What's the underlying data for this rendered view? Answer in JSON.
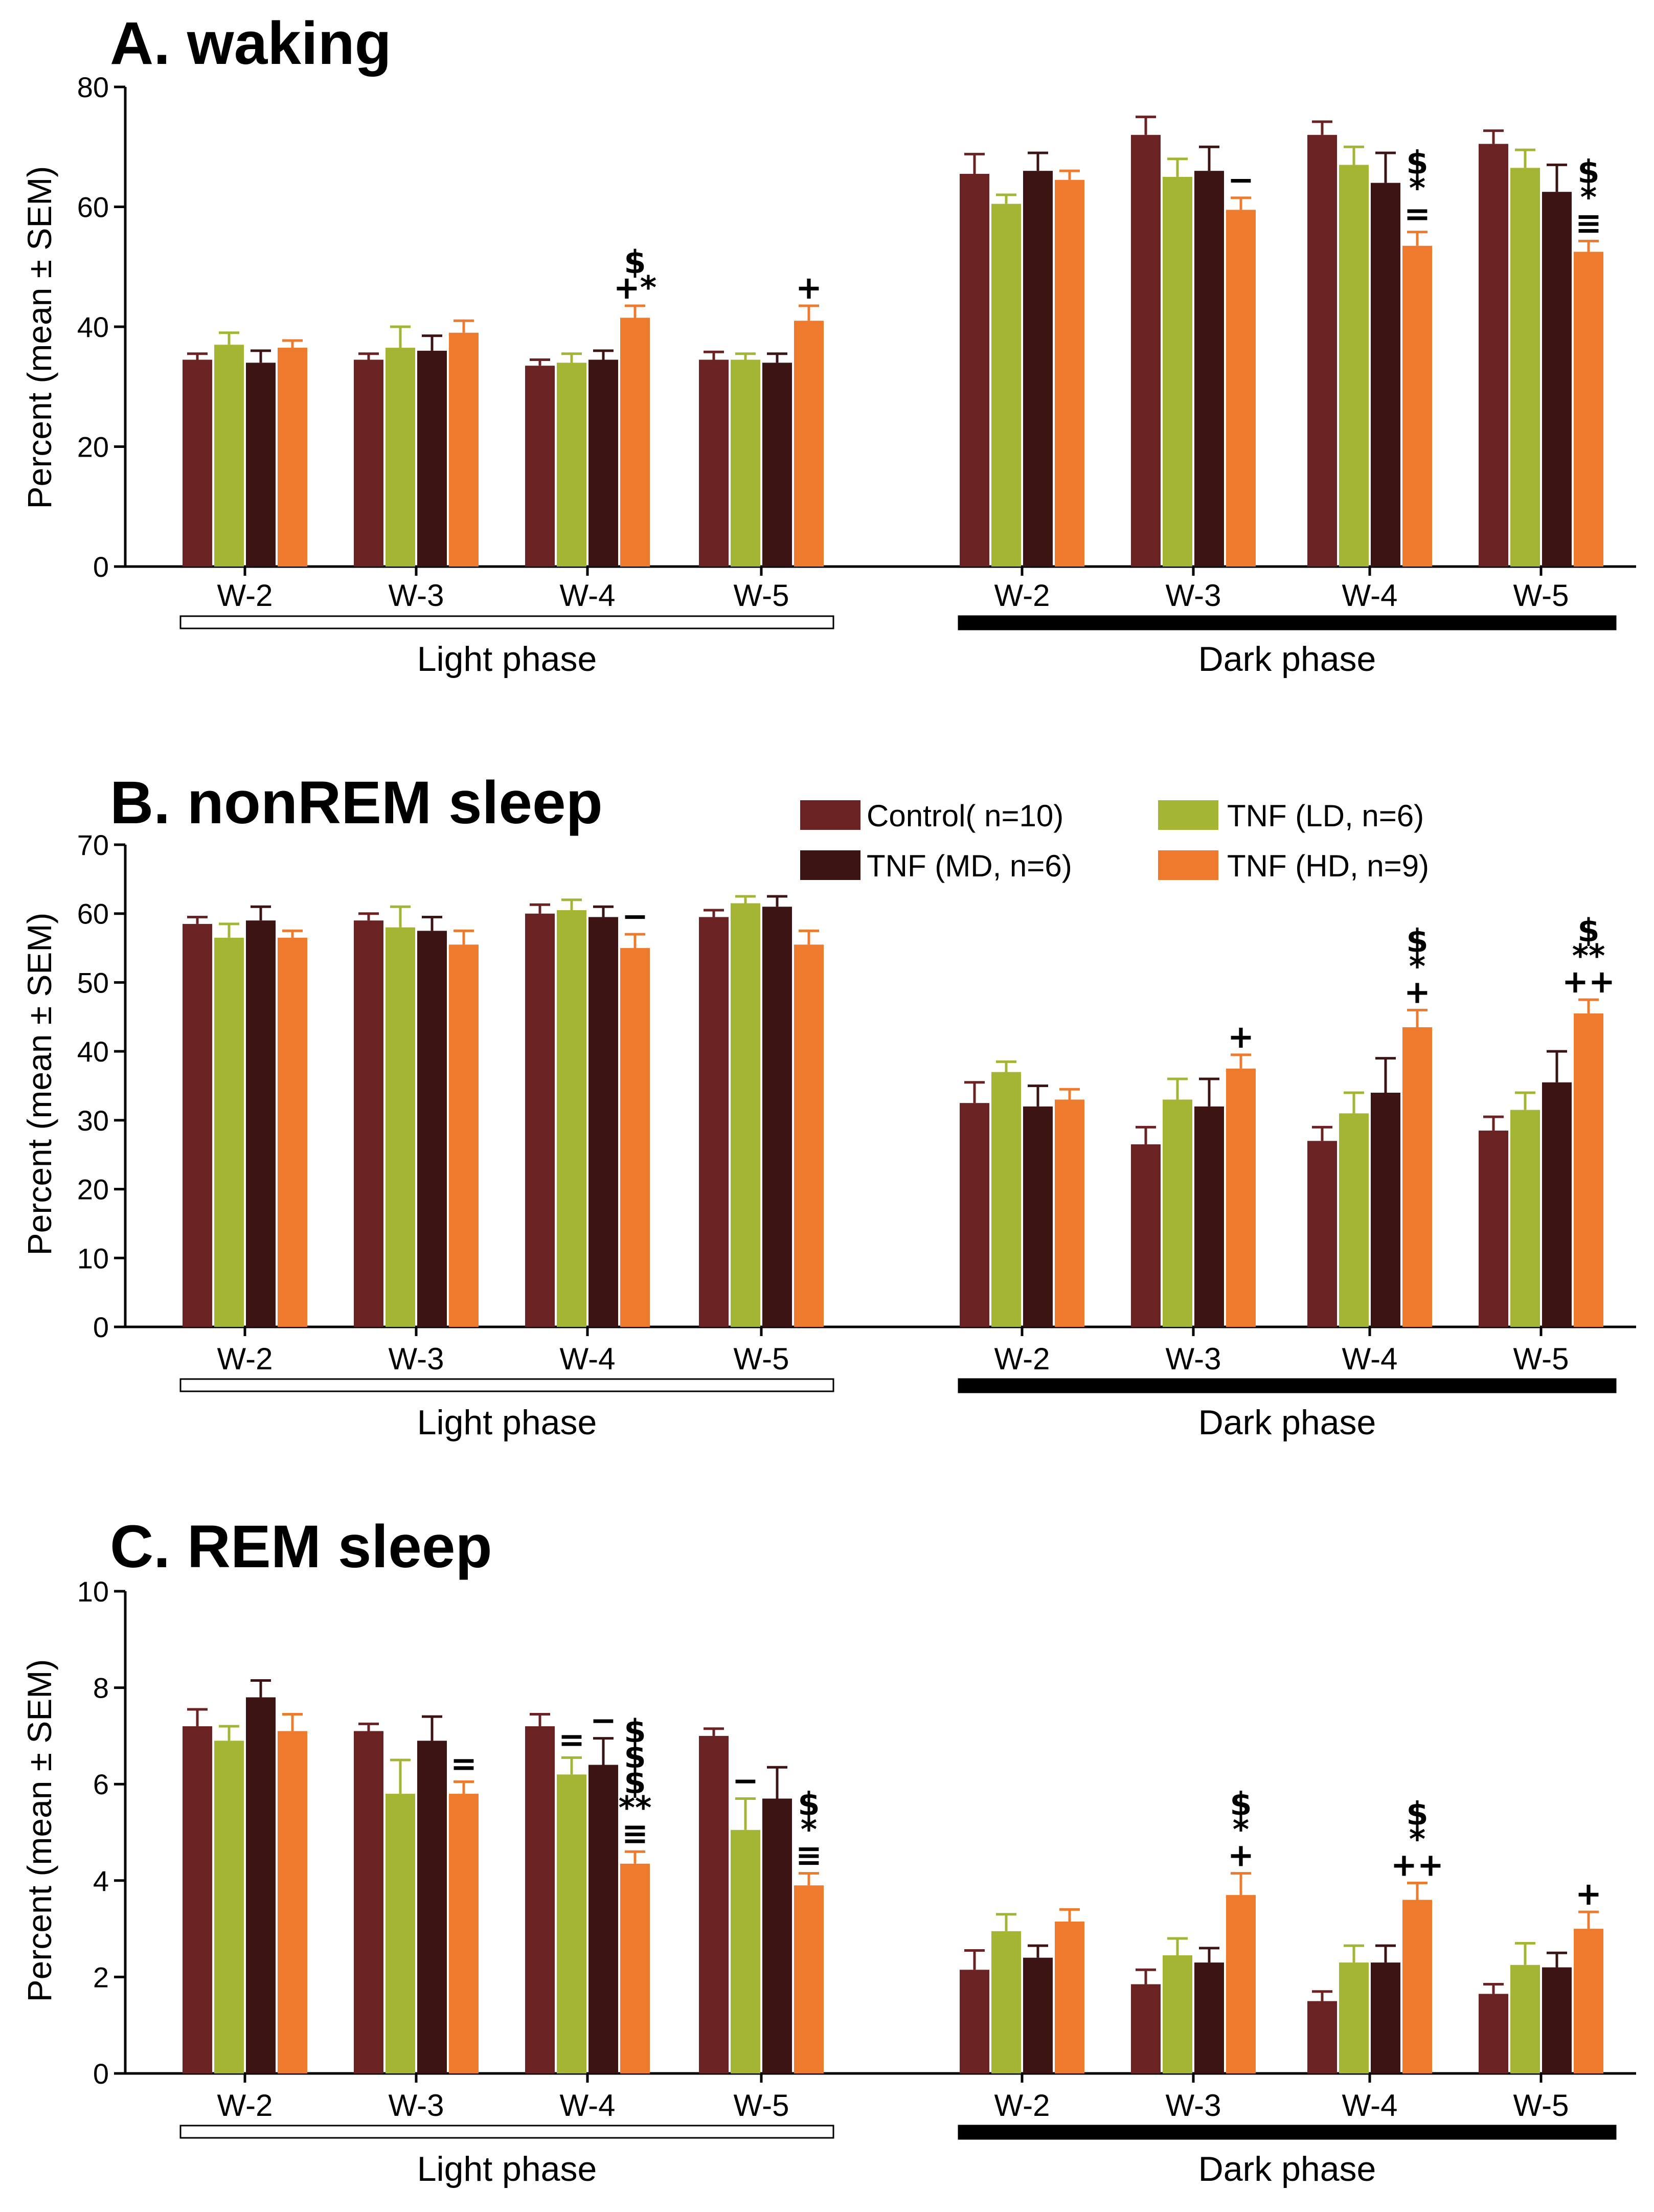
{
  "colors": {
    "control": "#6a2222",
    "ld": "#a4b534",
    "md": "#3d1414",
    "hd": "#ee7a2d",
    "axis": "#000000"
  },
  "legend": [
    {
      "name": "Control( n=10)",
      "color_key": "control"
    },
    {
      "name": "TNF (LD, n=6)",
      "color_key": "ld"
    },
    {
      "name": "TNF (MD, n=6)",
      "color_key": "md"
    },
    {
      "name": "TNF (HD, n=9)",
      "color_key": "hd"
    }
  ],
  "chart_data": [
    {
      "type": "bar",
      "title": "A. waking",
      "ylabel": "Percent  (mean ± SEM)",
      "ylim": [
        0,
        80
      ],
      "yticks": [
        0,
        20,
        40,
        60,
        80
      ],
      "ytick_labels": [
        "0",
        "20",
        "40",
        "60",
        "80"
      ],
      "categories": [
        "W-2",
        "W-3",
        "W-4",
        "W-5",
        "W-2",
        "W-3",
        "W-4",
        "W-5"
      ],
      "phases": [
        {
          "label": "Light phase",
          "fill": "white"
        },
        {
          "label": "Dark phase",
          "fill": "black"
        }
      ],
      "series": [
        {
          "name": "Control( n=10)",
          "values": [
            34.5,
            34.5,
            33.5,
            34.5,
            65.5,
            72,
            72,
            70.5
          ],
          "errors": [
            1,
            1,
            1,
            1.3,
            3.3,
            3,
            2.2,
            2.2
          ]
        },
        {
          "name": "TNF (LD, n=6)",
          "values": [
            37,
            36.5,
            34,
            34.5,
            60.5,
            65,
            67,
            66.5
          ],
          "errors": [
            2,
            3.5,
            1.5,
            1,
            1.5,
            3,
            3,
            3
          ]
        },
        {
          "name": "TNF (MD, n=6)",
          "values": [
            34,
            36,
            34.5,
            34,
            66,
            66,
            64,
            62.5
          ],
          "errors": [
            2,
            2.5,
            1.5,
            1.5,
            3,
            4,
            5,
            4.5
          ]
        },
        {
          "name": "TNF (HD, n=9)",
          "values": [
            36.5,
            39,
            41.5,
            41,
            64.5,
            59.5,
            53.5,
            52.5
          ],
          "errors": [
            1.2,
            2,
            2,
            2.5,
            1.5,
            2,
            2.3,
            1.8
          ]
        }
      ],
      "annotations": [
        {
          "category": 2,
          "series": 3,
          "lines": [
            "$",
            "+*"
          ]
        },
        {
          "category": 3,
          "series": 3,
          "lines": [
            "+"
          ]
        },
        {
          "category": 5,
          "series": 3,
          "lines": [
            "−"
          ]
        },
        {
          "category": 6,
          "series": 3,
          "lines": [
            "$",
            "*",
            "="
          ]
        },
        {
          "category": 7,
          "series": 3,
          "lines": [
            "$",
            "*",
            "≡"
          ]
        }
      ]
    },
    {
      "type": "bar",
      "title": "B. nonREM sleep",
      "ylabel": "Percent  (mean ± SEM)",
      "ylim": [
        0,
        70
      ],
      "yticks": [
        0,
        10,
        20,
        30,
        40,
        50,
        60,
        70
      ],
      "ytick_labels": [
        "0",
        "10",
        "20",
        "30",
        "40",
        "50",
        "60",
        "70"
      ],
      "categories": [
        "W-2",
        "W-3",
        "W-4",
        "W-5",
        "W-2",
        "W-3",
        "W-4",
        "W-5"
      ],
      "phases": [
        {
          "label": "Light phase",
          "fill": "white"
        },
        {
          "label": "Dark phase",
          "fill": "black"
        }
      ],
      "series": [
        {
          "name": "Control( n=10)",
          "values": [
            58.5,
            59,
            60,
            59.5,
            32.5,
            26.5,
            27,
            28.5
          ],
          "errors": [
            1,
            1,
            1.3,
            1,
            3,
            2.5,
            2,
            2
          ]
        },
        {
          "name": "TNF (LD, n=6)",
          "values": [
            56.5,
            58,
            60.5,
            61.5,
            37,
            33,
            31,
            31.5
          ],
          "errors": [
            2,
            3,
            1.5,
            1,
            1.5,
            3,
            3,
            2.5
          ]
        },
        {
          "name": "TNF (MD, n=6)",
          "values": [
            59,
            57.5,
            59.5,
            61,
            32,
            32,
            34,
            35.5
          ],
          "errors": [
            2,
            2,
            1.5,
            1.5,
            3,
            4,
            5,
            4.5
          ]
        },
        {
          "name": "TNF (HD, n=9)",
          "values": [
            56.5,
            55.5,
            55,
            55.5,
            33,
            37.5,
            43.5,
            45.5
          ],
          "errors": [
            1,
            2,
            2,
            2,
            1.5,
            2,
            2.5,
            2
          ]
        }
      ],
      "annotations": [
        {
          "category": 2,
          "series": 3,
          "lines": [
            "−"
          ]
        },
        {
          "category": 5,
          "series": 3,
          "lines": [
            "+"
          ]
        },
        {
          "category": 6,
          "series": 3,
          "lines": [
            "$",
            "*",
            "+"
          ]
        },
        {
          "category": 7,
          "series": 3,
          "lines": [
            "$",
            "**",
            "++"
          ]
        }
      ]
    },
    {
      "type": "bar",
      "title": "C. REM sleep",
      "ylabel": "Percent  (mean ± SEM)",
      "ylim": [
        0,
        10
      ],
      "yticks": [
        0,
        2,
        4,
        6,
        8,
        10
      ],
      "ytick_labels": [
        "0",
        "2",
        "4",
        "6",
        "8",
        "10"
      ],
      "categories": [
        "W-2",
        "W-3",
        "W-4",
        "W-5",
        "W-2",
        "W-3",
        "W-4",
        "W-5"
      ],
      "phases": [
        {
          "label": "Light phase",
          "fill": "white"
        },
        {
          "label": "Dark phase",
          "fill": "black"
        }
      ],
      "series": [
        {
          "name": "Control( n=10)",
          "values": [
            7.2,
            7.1,
            7.2,
            7,
            2.15,
            1.85,
            1.5,
            1.65
          ],
          "errors": [
            0.35,
            0.15,
            0.25,
            0.15,
            0.4,
            0.3,
            0.2,
            0.2
          ]
        },
        {
          "name": "TNF (LD, n=6)",
          "values": [
            6.9,
            5.8,
            6.2,
            5.05,
            2.95,
            2.45,
            2.3,
            2.25
          ],
          "errors": [
            0.3,
            0.7,
            0.35,
            0.65,
            0.35,
            0.35,
            0.35,
            0.45
          ]
        },
        {
          "name": "TNF (MD, n=6)",
          "values": [
            7.8,
            6.9,
            6.4,
            5.7,
            2.4,
            2.3,
            2.3,
            2.2
          ],
          "errors": [
            0.35,
            0.5,
            0.55,
            0.65,
            0.25,
            0.3,
            0.35,
            0.3
          ]
        },
        {
          "name": "TNF (HD, n=9)",
          "values": [
            7.1,
            5.8,
            4.35,
            3.9,
            3.15,
            3.7,
            3.6,
            3
          ],
          "errors": [
            0.35,
            0.25,
            0.25,
            0.25,
            0.25,
            0.45,
            0.35,
            0.35
          ]
        }
      ],
      "annotations": [
        {
          "category": 1,
          "series": 3,
          "lines": [
            "="
          ]
        },
        {
          "category": 2,
          "series": 1,
          "lines": [
            "="
          ]
        },
        {
          "category": 2,
          "series": 2,
          "lines": [
            "−"
          ]
        },
        {
          "category": 2,
          "series": 3,
          "lines": [
            "$",
            "$",
            "$",
            "**",
            "≡"
          ]
        },
        {
          "category": 3,
          "series": 1,
          "lines": [
            "−"
          ]
        },
        {
          "category": 3,
          "series": 3,
          "lines": [
            "$",
            "*",
            "≡"
          ]
        },
        {
          "category": 5,
          "series": 3,
          "lines": [
            "$",
            "*",
            "+"
          ]
        },
        {
          "category": 6,
          "series": 3,
          "lines": [
            "$",
            "*",
            "++"
          ]
        },
        {
          "category": 7,
          "series": 3,
          "lines": [
            "+"
          ]
        }
      ]
    }
  ]
}
